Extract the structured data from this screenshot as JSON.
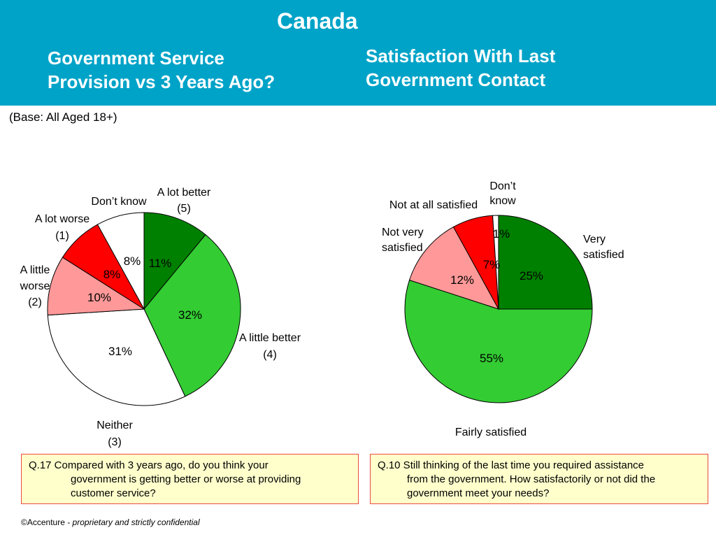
{
  "header": {
    "country": "Canada",
    "title_left": "Government Service\nProvision vs 3 Years Ago?",
    "title_right": "Satisfaction With Last\nGovernment Contact",
    "background": "#00a3c8"
  },
  "base_note": "(Base: All Aged 18+)",
  "chart_data": [
    {
      "type": "pie",
      "title": "Government Service Provision vs 3 Years Ago?",
      "slices": [
        {
          "label": "A lot better (5)",
          "value": 11,
          "pct_label": "11%",
          "color": "#008000"
        },
        {
          "label": "A little better (4)",
          "value": 32,
          "pct_label": "32%",
          "color": "#33cc33"
        },
        {
          "label": "Neither (3)",
          "value": 31,
          "pct_label": "31%",
          "color": "#ffffff"
        },
        {
          "label": "A little worse (2)",
          "value": 10,
          "pct_label": "10%",
          "color": "#ff9999"
        },
        {
          "label": "A lot worse (1)",
          "value": 8,
          "pct_label": "8%",
          "color": "#ff0000"
        },
        {
          "label": "Don’t know",
          "value": 8,
          "pct_label": "8%",
          "color": "#ffffff"
        }
      ]
    },
    {
      "type": "pie",
      "title": "Satisfaction With Last Government Contact",
      "slices": [
        {
          "label": "Very satisfied",
          "value": 25,
          "pct_label": "25%",
          "color": "#008000"
        },
        {
          "label": "Fairly satisfied",
          "value": 55,
          "pct_label": "55%",
          "color": "#33cc33"
        },
        {
          "label": "Not very satisfied",
          "value": 12,
          "pct_label": "12%",
          "color": "#ff9999"
        },
        {
          "label": "Not at all satisfied",
          "value": 7,
          "pct_label": "7%",
          "color": "#ff0000"
        },
        {
          "label": "Don’t know",
          "value": 1,
          "pct_label": "1%",
          "color": "#ffffff"
        }
      ]
    }
  ],
  "questions": {
    "left": {
      "line1": "Q.17    Compared with 3 years ago, do you think your",
      "line2": "government is getting better or worse at providing",
      "line3": "customer service?"
    },
    "right": {
      "line1": "Q.10 Still thinking of the last time you required assistance",
      "line2": "from the government.   How satisfactorily or not did the",
      "line3": "government meet your needs?"
    }
  },
  "footer": {
    "copyright": "©Accenture - ",
    "confidential": "proprietary and strictly confidential"
  }
}
